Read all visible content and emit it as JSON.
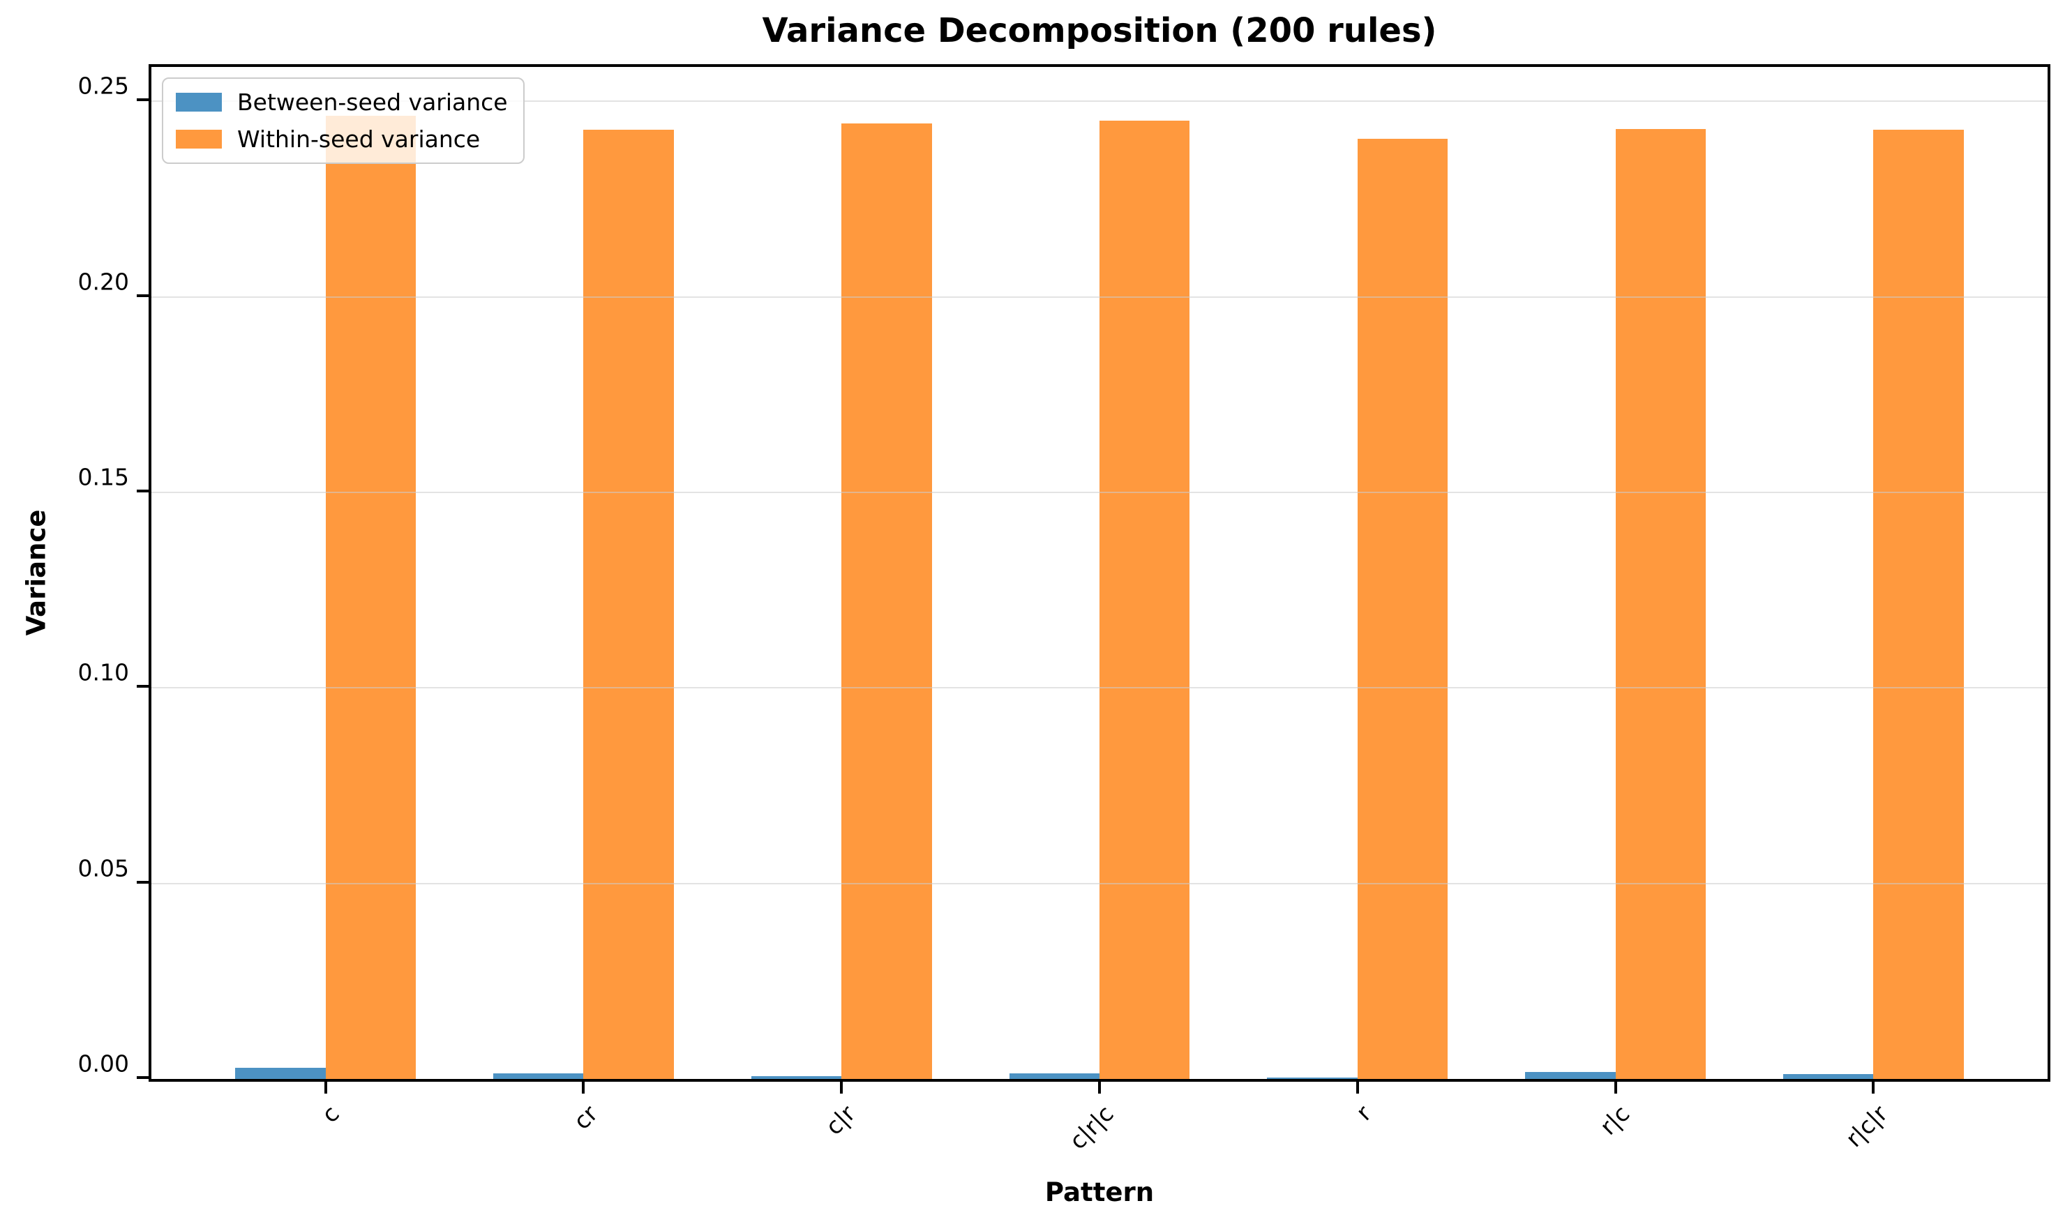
{
  "chart_data": {
    "type": "bar",
    "title": "Variance Decomposition (200 rules)",
    "xlabel": "Pattern",
    "ylabel": "Variance",
    "categories": [
      "c",
      "cr",
      "c|r",
      "c|r|c",
      "r",
      "r|c",
      "r|c|r"
    ],
    "series": [
      {
        "name": "Between-seed variance",
        "color": "#4C92C3",
        "values": [
          0.0029,
          0.0015,
          0.0008,
          0.0014,
          0.0004,
          0.0018,
          0.0013
        ]
      },
      {
        "name": "Within-seed variance",
        "color": "#FF993E",
        "values": [
          0.2464,
          0.2427,
          0.2444,
          0.245,
          0.2405,
          0.2429,
          0.2427
        ]
      }
    ],
    "ylim": [
      0,
      0.2588
    ],
    "yticks": [
      0,
      0.05,
      0.1,
      0.15,
      0.2,
      0.25
    ],
    "ytick_labels": [
      "0.00",
      "0.05",
      "0.10",
      "0.15",
      "0.20",
      "0.25"
    ],
    "grid": true,
    "grid_over_bars": true,
    "legend_position": "upper left",
    "bar_width_data": 0.35,
    "x_axis_span": 7.35,
    "x_first_center": 0.675,
    "xtick_rotation_deg": 45
  }
}
